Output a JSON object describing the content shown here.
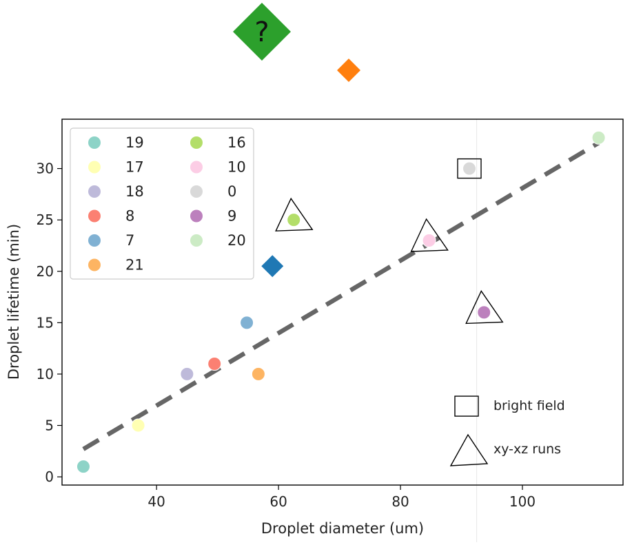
{
  "chart_data": {
    "type": "scatter",
    "title": "",
    "xlabel": "Droplet diameter (um)",
    "ylabel": "Droplet lifetime (min)",
    "xlim": [
      24.5,
      116.5
    ],
    "ylim": [
      -0.8,
      34.8
    ],
    "xticks": [
      40,
      60,
      80,
      100
    ],
    "yticks": [
      0,
      5,
      10,
      15,
      20,
      25,
      30
    ],
    "grid": false,
    "legend_position": "upper-left",
    "legend_columns": 2,
    "series": [
      {
        "name": "19",
        "x": 28.0,
        "y": 1.0,
        "color": "#8dd3c7"
      },
      {
        "name": "17",
        "x": 37.0,
        "y": 5.0,
        "color": "#ffffb3"
      },
      {
        "name": "18",
        "x": 45.0,
        "y": 10.0,
        "color": "#bebada"
      },
      {
        "name": "8",
        "x": 49.5,
        "y": 11.0,
        "color": "#fb8072"
      },
      {
        "name": "7",
        "x": 54.8,
        "y": 15.0,
        "color": "#80b1d3"
      },
      {
        "name": "21",
        "x": 56.7,
        "y": 10.0,
        "color": "#fdb462"
      },
      {
        "name": "16",
        "x": 62.5,
        "y": 25.0,
        "color": "#b3de69"
      },
      {
        "name": "10",
        "x": 84.7,
        "y": 23.0,
        "color": "#fccde5"
      },
      {
        "name": "0",
        "x": 91.3,
        "y": 30.0,
        "color": "#d9d9d9"
      },
      {
        "name": "9",
        "x": 93.7,
        "y": 16.0,
        "color": "#bc80bd"
      },
      {
        "name": "20",
        "x": 112.5,
        "y": 33.0,
        "color": "#ccebc5"
      }
    ],
    "trend_line": {
      "x": [
        28.0,
        112.5
      ],
      "y": [
        2.7,
        32.5
      ],
      "color": "#666666",
      "style": "dashed"
    },
    "bright_field_markers": [
      {
        "x": 91.3,
        "y": 30.0
      }
    ],
    "xy_xz_run_markers": [
      {
        "x": 62.5,
        "y": 25.0
      },
      {
        "x": 84.7,
        "y": 23.0
      },
      {
        "x": 93.7,
        "y": 16.0
      }
    ],
    "extra_diamond": {
      "x": 59.0,
      "y": 20.5,
      "color": "#1f78b4"
    },
    "marker_legend": [
      {
        "label": "bright field",
        "shape": "square"
      },
      {
        "label": "xy-xz runs",
        "shape": "triangle"
      }
    ],
    "reference_line_x": 92.5,
    "floating_markers": [
      {
        "shape": "diamond",
        "color": "#2ca02c",
        "text": "?"
      },
      {
        "shape": "diamond",
        "color": "#ff7f0e",
        "text": ""
      }
    ]
  }
}
